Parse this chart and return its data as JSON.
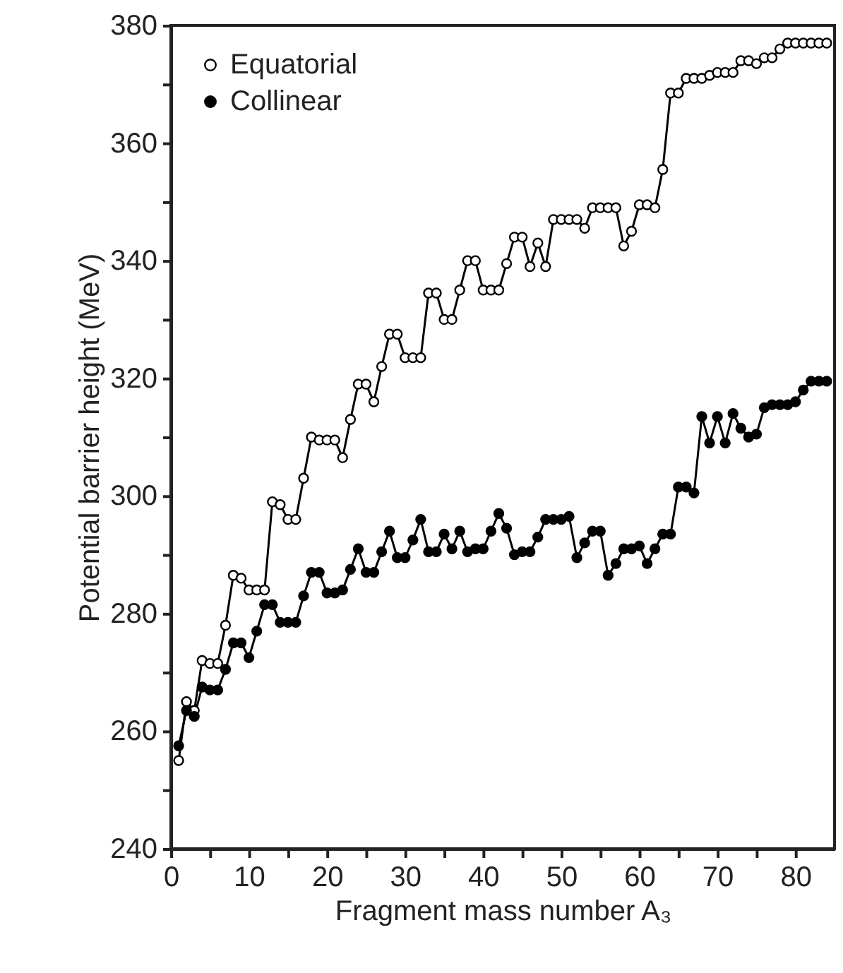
{
  "chart_data": {
    "type": "line",
    "xlabel": "Fragment mass number A₃",
    "ylabel": "Potential barrier height (MeV)",
    "x": [
      1,
      2,
      3,
      4,
      5,
      6,
      7,
      8,
      9,
      10,
      11,
      12,
      13,
      14,
      15,
      16,
      17,
      18,
      19,
      20,
      21,
      22,
      23,
      24,
      25,
      26,
      27,
      28,
      29,
      30,
      31,
      32,
      33,
      34,
      35,
      36,
      37,
      38,
      39,
      40,
      41,
      42,
      43,
      44,
      45,
      46,
      47,
      48,
      49,
      50,
      51,
      52,
      53,
      54,
      55,
      56,
      57,
      58,
      59,
      60,
      61,
      62,
      63,
      64,
      65,
      66,
      67,
      68,
      69,
      70,
      71,
      72,
      73,
      74,
      75,
      76,
      77,
      78,
      79,
      80,
      81,
      82,
      83,
      84
    ],
    "series": [
      {
        "name": "Equatorial",
        "color": "#000000",
        "values": [
          255,
          265,
          263.5,
          272,
          271.5,
          271.5,
          278,
          286.5,
          286,
          284,
          284,
          284,
          299,
          298.5,
          296,
          296,
          303,
          310,
          309.5,
          309.5,
          309.5,
          306.5,
          313,
          319,
          319,
          316,
          322,
          327.5,
          327.5,
          323.5,
          323.5,
          323.5,
          334.5,
          334.5,
          330,
          330,
          335,
          340,
          340,
          335,
          335,
          335,
          339.5,
          344,
          344,
          339,
          343,
          339,
          347,
          347,
          347,
          347,
          345.5,
          349,
          349,
          349,
          349,
          342.5,
          345,
          349.5,
          349.5,
          349,
          355.5,
          368.5,
          368.5,
          371,
          371,
          371,
          371.5,
          372,
          372,
          372,
          374,
          374,
          373.5,
          374.5,
          374.5,
          376,
          377,
          377,
          377,
          377,
          377,
          377
        ]
      },
      {
        "name": "Collinear",
        "color": "#000000",
        "values": [
          257.5,
          263.5,
          262.5,
          267.5,
          267,
          267,
          270.5,
          275,
          275,
          272.5,
          277,
          281.5,
          281.5,
          278.5,
          278.5,
          278.5,
          283,
          287,
          287,
          283.5,
          283.5,
          284,
          287.5,
          291,
          287,
          287,
          290.5,
          294,
          289.5,
          289.5,
          292.5,
          296,
          290.5,
          290.5,
          293.5,
          291,
          294,
          290.5,
          291,
          291,
          294,
          297,
          294.5,
          290,
          290.5,
          290.5,
          293,
          296,
          296,
          296,
          296.5,
          289.5,
          292,
          294,
          294,
          286.5,
          288.5,
          291,
          291,
          291.5,
          288.5,
          291,
          293.5,
          293.5,
          301.5,
          301.5,
          300.5,
          313.5,
          309,
          313.5,
          309,
          314,
          311.5,
          310,
          310.5,
          315,
          315.5,
          315.5,
          315.5,
          316,
          318,
          319.5,
          319.5,
          319.5
        ]
      }
    ],
    "xlim": [
      0,
      85
    ],
    "xticks": [
      0,
      {
        "value": 5,
        "label": null
      },
      10,
      {
        "value": 15,
        "label": null
      },
      20,
      {
        "value": 25,
        "label": null
      },
      30,
      {
        "value": 35,
        "label": null
      },
      40,
      {
        "value": 45,
        "label": null
      },
      50,
      {
        "value": 55,
        "label": null
      },
      60,
      {
        "value": 65,
        "label": null
      },
      70,
      {
        "value": 75,
        "label": null
      },
      80
    ],
    "ylim": [
      240,
      380
    ],
    "yticks": [
      240,
      {
        "value": 250,
        "label": null
      },
      260,
      {
        "value": 270,
        "label": null
      },
      280,
      {
        "value": 290,
        "label": null
      },
      300,
      {
        "value": 310,
        "label": null
      },
      320,
      {
        "value": 330,
        "label": null
      },
      340,
      {
        "value": 350,
        "label": null
      },
      360,
      {
        "value": 370,
        "label": null
      },
      380
    ],
    "marker": "circle",
    "line_style": "solid",
    "legend": "top left",
    "grid": false
  }
}
